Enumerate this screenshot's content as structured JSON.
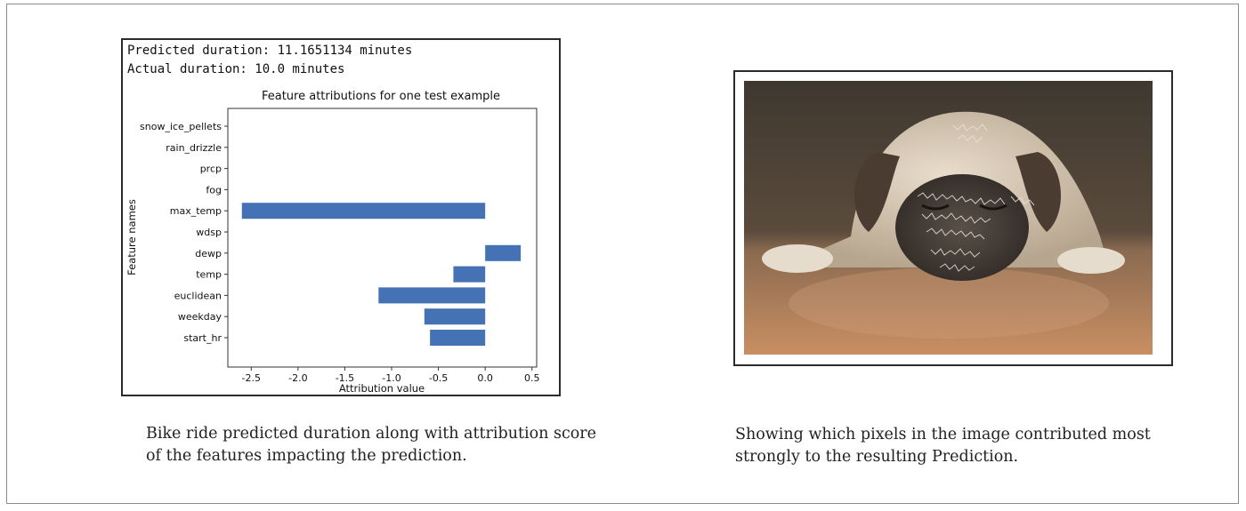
{
  "left_figure": {
    "predicted_line": "Predicted duration: 11.1651134 minutes",
    "actual_line": "Actual duration: 10.0 minutes",
    "caption": {
      "line1": "Bike ride predicted duration along with attribution score",
      "line2": "of the features impacting the prediction."
    }
  },
  "right_figure": {
    "image_description": "pug-dog-lying-on-floor-with-pixel-attribution-overlay",
    "caption": {
      "line1": "Showing which pixels in the image contributed most",
      "line2": "strongly to the resulting Prediction."
    }
  },
  "chart_data": {
    "type": "bar",
    "orientation": "horizontal",
    "title": "Feature attributions for one test example",
    "xlabel": "Attribution value",
    "ylabel": "Feature names",
    "categories": [
      "snow_ice_pellets",
      "rain_drizzle",
      "prcp",
      "fog",
      "max_temp",
      "wdsp",
      "dewp",
      "temp",
      "euclidean",
      "weekday",
      "start_hr"
    ],
    "values": [
      0,
      0,
      0,
      0,
      -2.6,
      0,
      0.38,
      -0.34,
      -1.14,
      -0.65,
      -0.59
    ],
    "xlim": [
      -2.75,
      0.55
    ],
    "xticks": [
      -2.5,
      -2.0,
      -1.5,
      -1.0,
      -0.5,
      0.0,
      0.5
    ],
    "xtick_labels": [
      "-2.5",
      "-2.0",
      "-1.5",
      "-1.0",
      "-0.5",
      "0.0",
      "0.5"
    ],
    "bar_color": "#4472b4",
    "grid": false
  }
}
